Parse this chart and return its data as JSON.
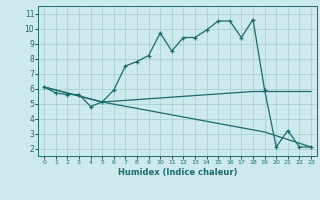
{
  "xlabel": "Humidex (Indice chaleur)",
  "ylabel": "",
  "bg_color": "#cce9eb",
  "grid_color": "#aacfd2",
  "line_color": "#1a6b6e",
  "xlim": [
    -0.5,
    23.5
  ],
  "ylim": [
    1.5,
    11.5
  ],
  "xticks": [
    0,
    1,
    2,
    3,
    4,
    5,
    6,
    7,
    8,
    9,
    10,
    11,
    12,
    13,
    14,
    15,
    16,
    17,
    18,
    19,
    20,
    21,
    22,
    23
  ],
  "yticks": [
    2,
    3,
    4,
    5,
    6,
    7,
    8,
    9,
    10,
    11
  ],
  "line1_x": [
    0,
    1,
    2,
    3,
    4,
    5,
    6,
    7,
    8,
    9,
    10,
    11,
    12,
    13,
    14,
    15,
    16,
    17,
    18,
    19,
    20,
    21,
    22,
    23
  ],
  "line1_y": [
    6.1,
    5.7,
    5.6,
    5.6,
    4.8,
    5.1,
    5.9,
    7.5,
    7.8,
    8.2,
    9.7,
    8.5,
    9.4,
    9.4,
    9.9,
    10.5,
    10.5,
    9.4,
    10.6,
    5.9,
    2.1,
    3.2,
    2.1,
    2.1
  ],
  "line2_x": [
    0,
    5,
    18,
    23
  ],
  "line2_y": [
    6.1,
    5.1,
    5.8,
    5.8
  ],
  "line3_x": [
    0,
    5,
    19,
    23
  ],
  "line3_y": [
    6.1,
    5.1,
    3.1,
    2.1
  ]
}
